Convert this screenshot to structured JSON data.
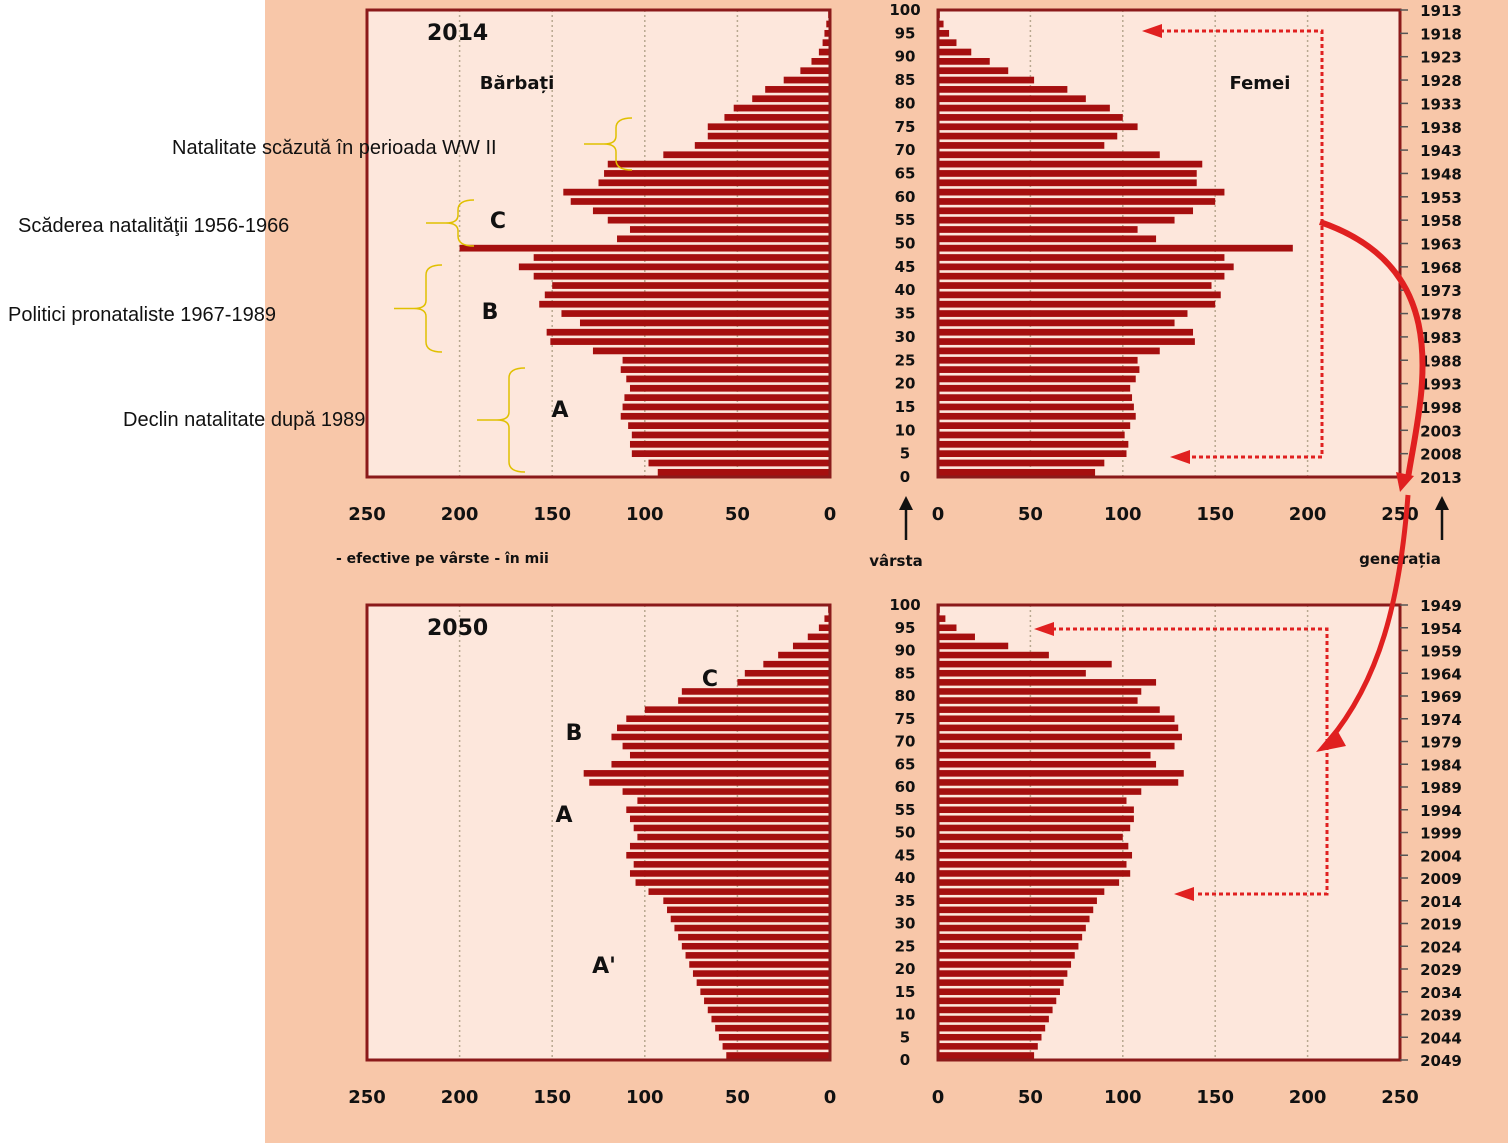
{
  "annotations": [
    {
      "text": "Natalitate scăzută în perioada WW II"
    },
    {
      "text": "Scăderea natalităţii 1956-1966"
    },
    {
      "text": "Politici pronataliste 1967-1989"
    },
    {
      "text": "Declin natalitate după 1989"
    }
  ],
  "axis_labels": {
    "x_caption": "- efective pe vârste - în mii",
    "age": "vârsta",
    "generation": "generația"
  },
  "colors": {
    "bar": "#a50f0f",
    "plot_bg": "#fde7dc",
    "page_bg": "#f8c7a9",
    "arrow": "#e02020"
  },
  "chart_data": [
    {
      "type": "bar",
      "orientation": "horizontal-population-pyramid",
      "title": "2014",
      "left_label": "Bărbați",
      "right_label": "Femei",
      "group_labels": [
        "C",
        "B",
        "A"
      ],
      "age_ticks": [
        0,
        5,
        10,
        15,
        20,
        25,
        30,
        35,
        40,
        45,
        50,
        55,
        60,
        65,
        70,
        75,
        80,
        85,
        90,
        95,
        100
      ],
      "generation_ticks": [
        "2013",
        "2008",
        "2003",
        "1998",
        "1993",
        "1988",
        "1983",
        "1978",
        "1973",
        "1968",
        "1963",
        "1958",
        "1953",
        "1948",
        "1943",
        "1938",
        "1933",
        "1928",
        "1923",
        "1918",
        "1913"
      ],
      "x_ticks_left": [
        250,
        200,
        150,
        100,
        50,
        0
      ],
      "x_ticks_right": [
        0,
        50,
        100,
        150,
        200,
        250
      ],
      "xlim": [
        0,
        250
      ],
      "age_groups": [
        0,
        2,
        4,
        6,
        8,
        10,
        12,
        14,
        16,
        18,
        20,
        22,
        24,
        26,
        28,
        30,
        32,
        34,
        36,
        38,
        40,
        42,
        44,
        46,
        48,
        50,
        52,
        54,
        56,
        58,
        60,
        62,
        64,
        66,
        68,
        70,
        72,
        74,
        76,
        78,
        80,
        82,
        84,
        86,
        88,
        90,
        92,
        94,
        96,
        98,
        100
      ],
      "series": [
        {
          "name": "Bărbați",
          "values": [
            93,
            98,
            107,
            108,
            107,
            109,
            113,
            112,
            111,
            108,
            110,
            113,
            112,
            128,
            151,
            153,
            135,
            145,
            157,
            154,
            150,
            160,
            168,
            160,
            200,
            115,
            108,
            120,
            128,
            140,
            144,
            125,
            122,
            120,
            90,
            73,
            66,
            66,
            57,
            52,
            42,
            35,
            25,
            16,
            10,
            6,
            4,
            3,
            2,
            1,
            0
          ]
        },
        {
          "name": "Femei",
          "values": [
            85,
            90,
            102,
            103,
            101,
            104,
            107,
            106,
            105,
            104,
            107,
            109,
            108,
            120,
            139,
            138,
            128,
            135,
            150,
            153,
            148,
            155,
            160,
            155,
            192,
            118,
            108,
            128,
            138,
            150,
            155,
            140,
            140,
            143,
            120,
            90,
            97,
            108,
            100,
            93,
            80,
            70,
            52,
            38,
            28,
            18,
            10,
            6,
            3,
            1,
            0
          ]
        }
      ]
    },
    {
      "type": "bar",
      "orientation": "horizontal-population-pyramid",
      "title": "2050",
      "group_labels": [
        "C",
        "B",
        "A",
        "A'"
      ],
      "age_ticks": [
        0,
        5,
        10,
        15,
        20,
        25,
        30,
        35,
        40,
        45,
        50,
        55,
        60,
        65,
        70,
        75,
        80,
        85,
        90,
        95,
        100
      ],
      "generation_ticks": [
        "2049",
        "2044",
        "2039",
        "2034",
        "2029",
        "2024",
        "2019",
        "2014",
        "2009",
        "2004",
        "1999",
        "1994",
        "1989",
        "1984",
        "1979",
        "1974",
        "1969",
        "1964",
        "1959",
        "1954",
        "1949"
      ],
      "x_ticks_left": [
        250,
        200,
        150,
        100,
        50,
        0
      ],
      "x_ticks_right": [
        0,
        50,
        100,
        150,
        200,
        250
      ],
      "xlim": [
        0,
        250
      ],
      "age_groups": [
        0,
        2,
        4,
        6,
        8,
        10,
        12,
        14,
        16,
        18,
        20,
        22,
        24,
        26,
        28,
        30,
        32,
        34,
        36,
        38,
        40,
        42,
        44,
        46,
        48,
        50,
        52,
        54,
        56,
        58,
        60,
        62,
        64,
        66,
        68,
        70,
        72,
        74,
        76,
        78,
        80,
        82,
        84,
        86,
        88,
        90,
        92,
        94,
        96,
        98,
        100
      ],
      "series": [
        {
          "name": "Bărbați",
          "values": [
            56,
            58,
            60,
            62,
            64,
            66,
            68,
            70,
            72,
            74,
            76,
            78,
            80,
            82,
            84,
            86,
            88,
            90,
            98,
            105,
            108,
            106,
            110,
            108,
            104,
            106,
            108,
            110,
            104,
            112,
            130,
            133,
            118,
            108,
            112,
            118,
            115,
            110,
            100,
            82,
            80,
            50,
            46,
            36,
            28,
            20,
            12,
            6,
            3,
            1,
            0
          ]
        },
        {
          "name": "Femei",
          "values": [
            52,
            54,
            56,
            58,
            60,
            62,
            64,
            66,
            68,
            70,
            72,
            74,
            76,
            78,
            80,
            82,
            84,
            86,
            90,
            98,
            104,
            102,
            105,
            103,
            100,
            104,
            106,
            106,
            102,
            110,
            130,
            133,
            118,
            115,
            128,
            132,
            130,
            128,
            120,
            108,
            110,
            118,
            80,
            94,
            60,
            38,
            20,
            10,
            4,
            1,
            0
          ]
        }
      ]
    }
  ]
}
